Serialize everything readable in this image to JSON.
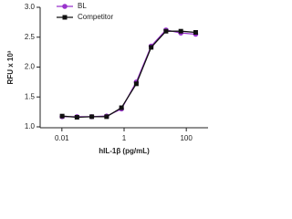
{
  "chart_data": {
    "type": "scatter",
    "x_label": "hIL-1β (pg/mL)",
    "y_label": "RFU x 10³",
    "x_log": true,
    "xlim": [
      0.002,
      500
    ],
    "xticks": [
      0.01,
      1,
      100
    ],
    "ylim": [
      1.0,
      3.0
    ],
    "yticks": [
      {
        "value": 1.0,
        "label": "1.0"
      },
      {
        "value": 1.5,
        "label": "1.5"
      },
      {
        "value": 2.0,
        "label": "2.0"
      },
      {
        "value": 2.5,
        "label": "2.5"
      },
      {
        "value": 3.0,
        "label": "3.0"
      }
    ],
    "legend": "upper left",
    "x": [
      0.0102,
      0.0305,
      0.0914,
      0.274,
      0.823,
      2.47,
      7.41,
      22.2,
      66.7,
      200
    ],
    "series": [
      {
        "name": "BL",
        "color": "#9933cc",
        "marker": "circle",
        "values": [
          1.17,
          1.17,
          1.17,
          1.18,
          1.3,
          1.75,
          2.35,
          2.62,
          2.57,
          2.55
        ]
      },
      {
        "name": "Competitor",
        "color": "#111111",
        "marker": "square",
        "values": [
          1.18,
          1.16,
          1.17,
          1.17,
          1.32,
          1.72,
          2.33,
          2.6,
          2.6,
          2.58
        ]
      }
    ]
  }
}
